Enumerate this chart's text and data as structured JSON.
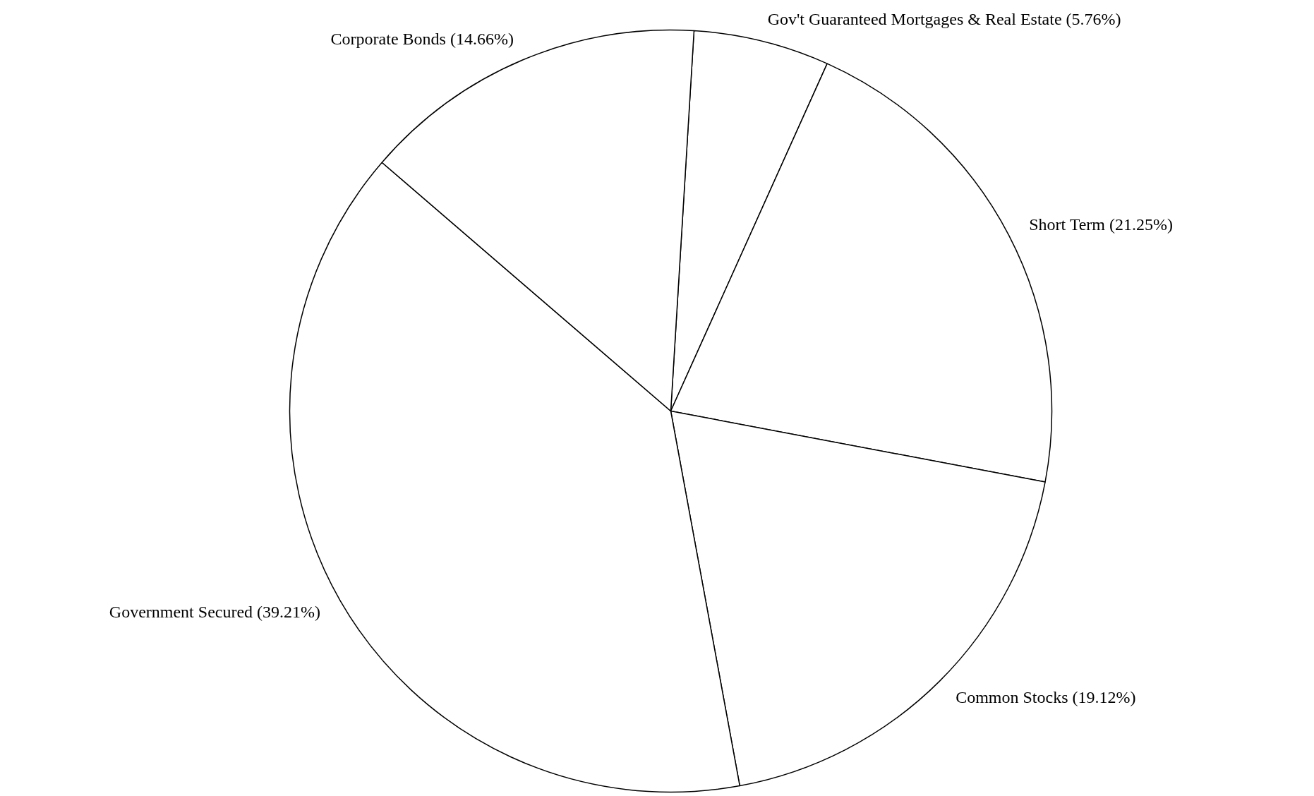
{
  "chart_data": {
    "type": "pie",
    "categories": [
      "Gov't Guaranteed Mortgages & Real Estate",
      "Short Term",
      "Common Stocks",
      "Government Secured",
      "Corporate Bonds"
    ],
    "values": [
      5.76,
      21.25,
      19.12,
      39.21,
      14.66
    ],
    "colors": [
      "#ffffff",
      "#ffffff",
      "#ffffff",
      "#ffffff",
      "#ffffff"
    ],
    "value_labels": [
      "(5.76%)",
      "(21.25%)",
      "(19.12%)",
      "(39.21%)",
      "(14.66%)"
    ]
  }
}
